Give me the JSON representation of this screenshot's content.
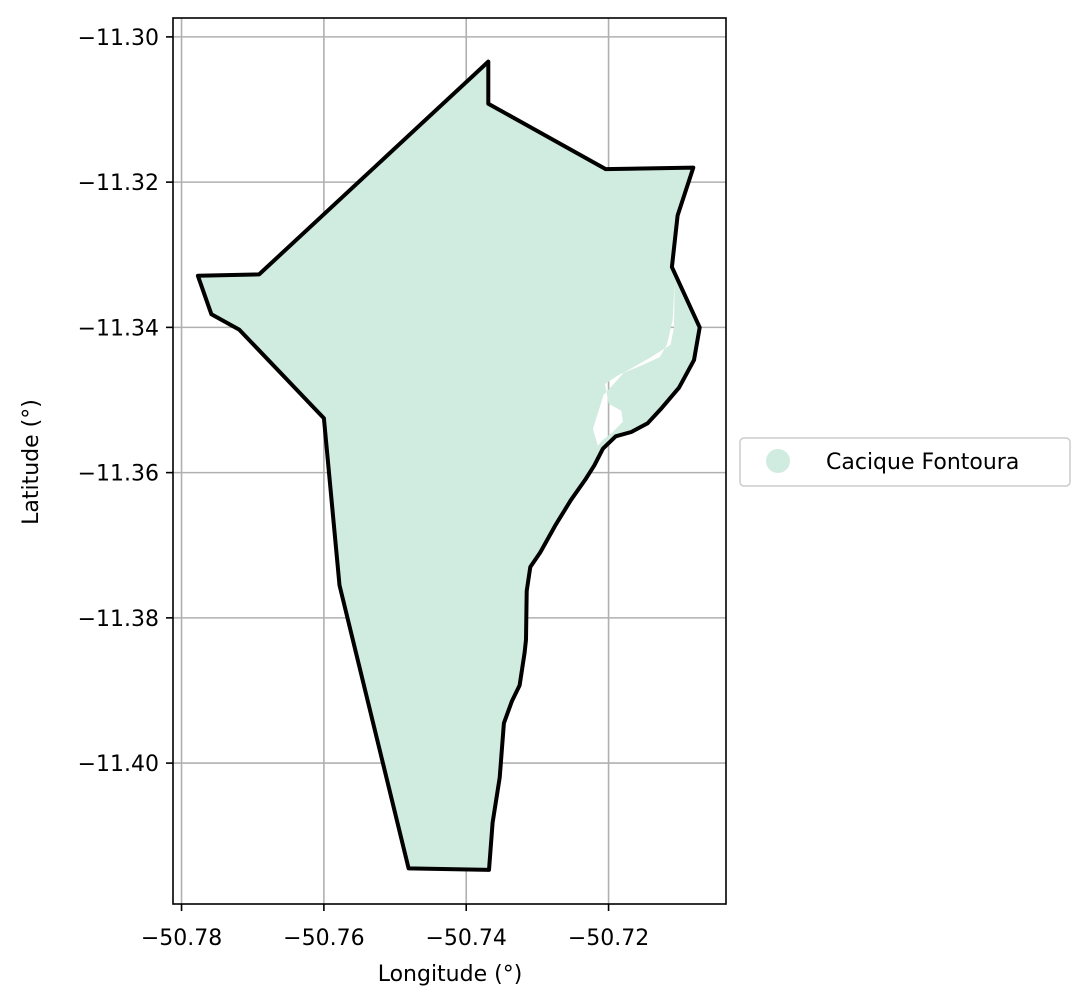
{
  "chart_data": {
    "type": "map",
    "xlabel": "Longitude (°)",
    "ylabel": "Latitude (°)",
    "xlim": [
      -50.7812,
      -50.7035
    ],
    "ylim": [
      -11.4194,
      -11.2974
    ],
    "x_ticks": [
      {
        "value": -50.78,
        "label": "−50.78"
      },
      {
        "value": -50.76,
        "label": "−50.76"
      },
      {
        "value": -50.74,
        "label": "−50.74"
      },
      {
        "value": -50.72,
        "label": "−50.72"
      }
    ],
    "y_ticks": [
      {
        "value": -11.3,
        "label": "−11.30"
      },
      {
        "value": -11.32,
        "label": "−11.32"
      },
      {
        "value": -11.34,
        "label": "−11.34"
      },
      {
        "value": -11.36,
        "label": "−11.36"
      },
      {
        "value": -11.38,
        "label": "−11.38"
      },
      {
        "value": -11.4,
        "label": "−11.40"
      }
    ],
    "grid": true,
    "legend": {
      "placement": "right-outside",
      "entries": [
        {
          "label": "Cacique Fontoura",
          "color": "#d0ebdf"
        }
      ]
    },
    "region": {
      "name": "Cacique Fontoura",
      "fill": "#d0ebdf",
      "edge": "#000000",
      "boundary": [
        [
          -50.7369,
          -11.3034
        ],
        [
          -50.7369,
          -11.3092
        ],
        [
          -50.7204,
          -11.3182
        ],
        [
          -50.7081,
          -11.318
        ],
        [
          -50.7103,
          -11.3246
        ],
        [
          -50.7111,
          -11.3317
        ],
        [
          -50.7072,
          -11.34
        ],
        [
          -50.708,
          -11.3445
        ],
        [
          -50.7101,
          -11.3483
        ],
        [
          -50.7127,
          -11.3513
        ],
        [
          -50.7145,
          -11.3532
        ],
        [
          -50.7168,
          -11.3544
        ],
        [
          -50.719,
          -11.355
        ],
        [
          -50.7208,
          -11.3567
        ],
        [
          -50.722,
          -11.359
        ],
        [
          -50.7233,
          -11.361
        ],
        [
          -50.7253,
          -11.3638
        ],
        [
          -50.7275,
          -11.3673
        ],
        [
          -50.7296,
          -11.371
        ],
        [
          -50.731,
          -11.373
        ],
        [
          -50.7315,
          -11.3763
        ],
        [
          -50.7316,
          -11.383
        ],
        [
          -50.7318,
          -11.3848
        ],
        [
          -50.7325,
          -11.3893
        ],
        [
          -50.7336,
          -11.3915
        ],
        [
          -50.7347,
          -11.3945
        ],
        [
          -50.7353,
          -11.402
        ],
        [
          -50.7363,
          -11.4082
        ],
        [
          -50.7368,
          -11.4147
        ],
        [
          -50.7481,
          -11.4145
        ],
        [
          -50.7578,
          -11.3755
        ],
        [
          -50.76,
          -11.3525
        ],
        [
          -50.7719,
          -11.3403
        ],
        [
          -50.7758,
          -11.3382
        ],
        [
          -50.7777,
          -11.3329
        ],
        [
          -50.7691,
          -11.3327
        ]
      ],
      "hole": [
        [
          -50.7107,
          -11.3335
        ],
        [
          -50.7108,
          -11.34
        ],
        [
          -50.7113,
          -11.3424
        ],
        [
          -50.7142,
          -11.3442
        ],
        [
          -50.7178,
          -11.3462
        ],
        [
          -50.7207,
          -11.3493
        ],
        [
          -50.7222,
          -11.354
        ],
        [
          -50.7215,
          -11.3563
        ],
        [
          -50.7208,
          -11.3555
        ],
        [
          -50.7195,
          -11.3545
        ],
        [
          -50.718,
          -11.353
        ],
        [
          -50.7182,
          -11.3515
        ],
        [
          -50.72,
          -11.3505
        ],
        [
          -50.7205,
          -11.3478
        ],
        [
          -50.7185,
          -11.3465
        ],
        [
          -50.7155,
          -11.3453
        ],
        [
          -50.7128,
          -11.3441
        ],
        [
          -50.7118,
          -11.3424
        ],
        [
          -50.711,
          -11.339
        ]
      ]
    }
  }
}
